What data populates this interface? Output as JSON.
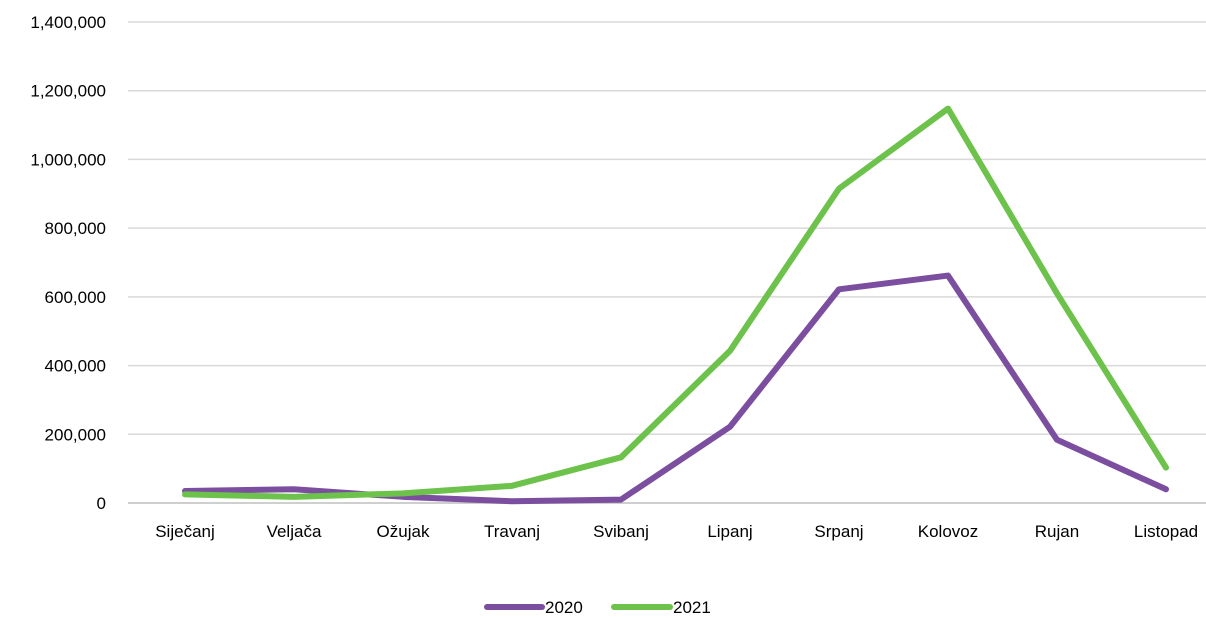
{
  "chart_data": {
    "type": "line",
    "title": "",
    "xlabel": "",
    "ylabel": "",
    "categories": [
      "Siječanj",
      "Veljača",
      "Ožujak",
      "Travanj",
      "Svibanj",
      "Lipanj",
      "Srpanj",
      "Kolovoz",
      "Rujan",
      "Listopad"
    ],
    "ylim": [
      0,
      1400000
    ],
    "yticks": [
      0,
      200000,
      400000,
      600000,
      800000,
      1000000,
      1200000,
      1400000
    ],
    "ytick_labels": [
      "0",
      "200,000",
      "400,000",
      "600,000",
      "800,000",
      "1,000,000",
      "1,200,000",
      "1,400,000"
    ],
    "grid": true,
    "legend_position": "bottom",
    "series": [
      {
        "name": "2020",
        "color": "#7b4ea0",
        "values": [
          35000,
          40000,
          18000,
          5000,
          10000,
          222000,
          622000,
          662000,
          184000,
          40000
        ]
      },
      {
        "name": "2021",
        "color": "#6cc24a",
        "values": [
          25000,
          18000,
          28000,
          50000,
          133000,
          443000,
          915000,
          1148000,
          610000,
          103000
        ]
      }
    ]
  }
}
